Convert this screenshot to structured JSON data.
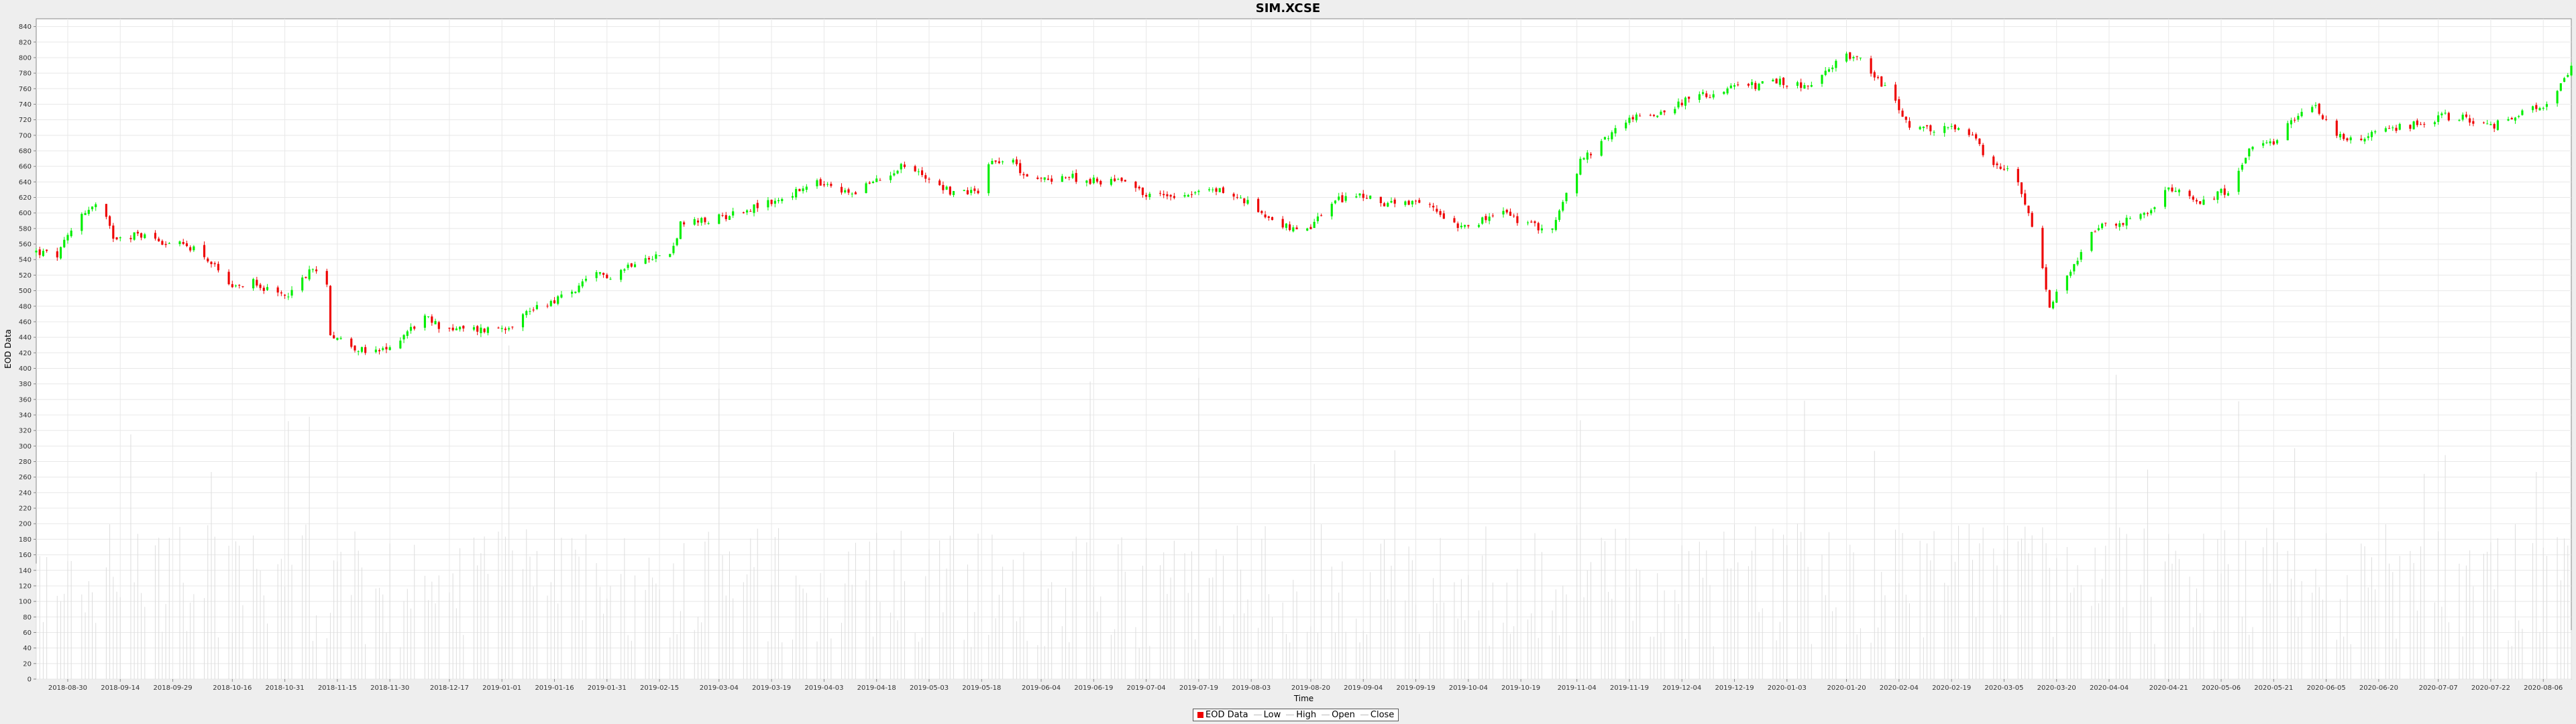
{
  "chart_data": {
    "type": "candlestick",
    "title": "SIM.XCSE",
    "xlabel": "Time",
    "ylabel": "EOD Data",
    "ylim": [
      0,
      850
    ],
    "yticks": [
      0,
      20,
      40,
      60,
      80,
      100,
      120,
      140,
      160,
      180,
      200,
      220,
      240,
      260,
      280,
      300,
      320,
      340,
      360,
      380,
      400,
      420,
      440,
      460,
      480,
      500,
      520,
      540,
      560,
      580,
      600,
      620,
      640,
      660,
      680,
      700,
      720,
      740,
      760,
      780,
      800,
      820,
      840
    ],
    "xrange": [
      "2018-08-21",
      "2020-08-14"
    ],
    "x_tick_labels": [
      "2018-08-30",
      "2018-09-14",
      "2018-09-29",
      "2018-10-16",
      "2018-10-31",
      "2018-11-15",
      "2018-11-30",
      "2018-12-17",
      "2019-01-01",
      "2019-01-16",
      "2019-01-31",
      "2019-02-15",
      "2019-03-04",
      "2019-03-19",
      "2019-04-03",
      "2019-04-18",
      "2019-05-03",
      "2019-05-18",
      "2019-06-04",
      "2019-06-19",
      "2019-07-04",
      "2019-07-19",
      "2019-08-03",
      "2019-08-20",
      "2019-09-04",
      "2019-09-19",
      "2019-10-04",
      "2019-10-19",
      "2019-11-04",
      "2019-11-19",
      "2019-12-04",
      "2019-12-19",
      "2020-01-03",
      "2020-01-20",
      "2020-02-04",
      "2020-02-19",
      "2020-03-05",
      "2020-03-20",
      "2020-04-04",
      "2020-04-21",
      "2020-05-06",
      "2020-05-21",
      "2020-06-05",
      "2020-06-20",
      "2020-07-07",
      "2020-07-22",
      "2020-08-06"
    ],
    "close_series_approx": [
      [
        "2018-08-21",
        550
      ],
      [
        "2018-08-27",
        545
      ],
      [
        "2018-09-03",
        600
      ],
      [
        "2018-09-08",
        612
      ],
      [
        "2018-09-12",
        570
      ],
      [
        "2018-09-20",
        572
      ],
      [
        "2018-09-29",
        560
      ],
      [
        "2018-10-06",
        555
      ],
      [
        "2018-10-10",
        535
      ],
      [
        "2018-10-16",
        500
      ],
      [
        "2018-10-22",
        515
      ],
      [
        "2018-10-28",
        492
      ],
      [
        "2018-11-03",
        500
      ],
      [
        "2018-11-07",
        528
      ],
      [
        "2018-11-12",
        512
      ],
      [
        "2018-11-13",
        445
      ],
      [
        "2018-11-19",
        430
      ],
      [
        "2018-11-24",
        418
      ],
      [
        "2018-11-30",
        425
      ],
      [
        "2018-12-04",
        445
      ],
      [
        "2018-12-10",
        465
      ],
      [
        "2018-12-14",
        455
      ],
      [
        "2018-12-19",
        450
      ],
      [
        "2018-12-27",
        450
      ],
      [
        "2019-01-03",
        455
      ],
      [
        "2019-01-10",
        478
      ],
      [
        "2019-01-20",
        495
      ],
      [
        "2019-01-28",
        520
      ],
      [
        "2019-02-02",
        520
      ],
      [
        "2019-02-10",
        545
      ],
      [
        "2019-02-18",
        545
      ],
      [
        "2019-02-21",
        585
      ],
      [
        "2019-03-01",
        590
      ],
      [
        "2019-03-12",
        605
      ],
      [
        "2019-03-20",
        615
      ],
      [
        "2019-04-01",
        638
      ],
      [
        "2019-04-10",
        625
      ],
      [
        "2019-04-20",
        645
      ],
      [
        "2019-04-25",
        662
      ],
      [
        "2019-05-03",
        645
      ],
      [
        "2019-05-10",
        625
      ],
      [
        "2019-05-17",
        630
      ],
      [
        "2019-05-20",
        665
      ],
      [
        "2019-05-25",
        672
      ],
      [
        "2019-06-02",
        640
      ],
      [
        "2019-06-10",
        648
      ],
      [
        "2019-06-20",
        640
      ],
      [
        "2019-06-28",
        645
      ],
      [
        "2019-07-04",
        622
      ],
      [
        "2019-07-15",
        625
      ],
      [
        "2019-07-25",
        630
      ],
      [
        "2019-08-01",
        615
      ],
      [
        "2019-08-10",
        590
      ],
      [
        "2019-08-18",
        570
      ],
      [
        "2019-08-25",
        610
      ],
      [
        "2019-09-01",
        625
      ],
      [
        "2019-09-08",
        615
      ],
      [
        "2019-09-15",
        610
      ],
      [
        "2019-09-22",
        612
      ],
      [
        "2019-10-01",
        585
      ],
      [
        "2019-10-08",
        590
      ],
      [
        "2019-10-14",
        602
      ],
      [
        "2019-10-20",
        585
      ],
      [
        "2019-10-28",
        580
      ],
      [
        "2019-11-05",
        665
      ],
      [
        "2019-11-11",
        690
      ],
      [
        "2019-11-18",
        720
      ],
      [
        "2019-11-28",
        730
      ],
      [
        "2019-12-05",
        745
      ],
      [
        "2019-12-14",
        755
      ],
      [
        "2019-12-20",
        762
      ],
      [
        "2020-01-01",
        768
      ],
      [
        "2020-01-10",
        762
      ],
      [
        "2020-01-20",
        805
      ],
      [
        "2020-01-25",
        795
      ],
      [
        "2020-02-01",
        755
      ],
      [
        "2020-02-08",
        705
      ],
      [
        "2020-02-18",
        710
      ],
      [
        "2020-02-25",
        700
      ],
      [
        "2020-03-01",
        660
      ],
      [
        "2020-03-08",
        650
      ],
      [
        "2020-03-14",
        570
      ],
      [
        "2020-03-18",
        480
      ],
      [
        "2020-03-25",
        530
      ],
      [
        "2020-03-31",
        580
      ],
      [
        "2020-04-06",
        585
      ],
      [
        "2020-04-15",
        600
      ],
      [
        "2020-04-21",
        630
      ],
      [
        "2020-04-30",
        615
      ],
      [
        "2020-05-08",
        630
      ],
      [
        "2020-05-14",
        680
      ],
      [
        "2020-05-22",
        690
      ],
      [
        "2020-05-26",
        720
      ],
      [
        "2020-06-02",
        738
      ],
      [
        "2020-06-08",
        700
      ],
      [
        "2020-06-15",
        695
      ],
      [
        "2020-06-25",
        710
      ],
      [
        "2020-07-02",
        715
      ],
      [
        "2020-07-08",
        725
      ],
      [
        "2020-07-15",
        722
      ],
      [
        "2020-07-22",
        710
      ],
      [
        "2020-07-28",
        725
      ],
      [
        "2020-08-05",
        735
      ],
      [
        "2020-08-10",
        755
      ],
      [
        "2020-08-14",
        785
      ]
    ],
    "volume_range_approx": [
      0,
      490
    ],
    "colors": {
      "up": "#00ee00",
      "down": "#ee0000",
      "volume": "#dddddd"
    },
    "legend_placement": "bottom-center",
    "grid": true
  },
  "legend": {
    "items": [
      {
        "label": "EOD Data",
        "color": "#ee0000"
      },
      {
        "label": "Low"
      },
      {
        "label": "High"
      },
      {
        "label": "Open"
      },
      {
        "label": "Close"
      }
    ]
  }
}
